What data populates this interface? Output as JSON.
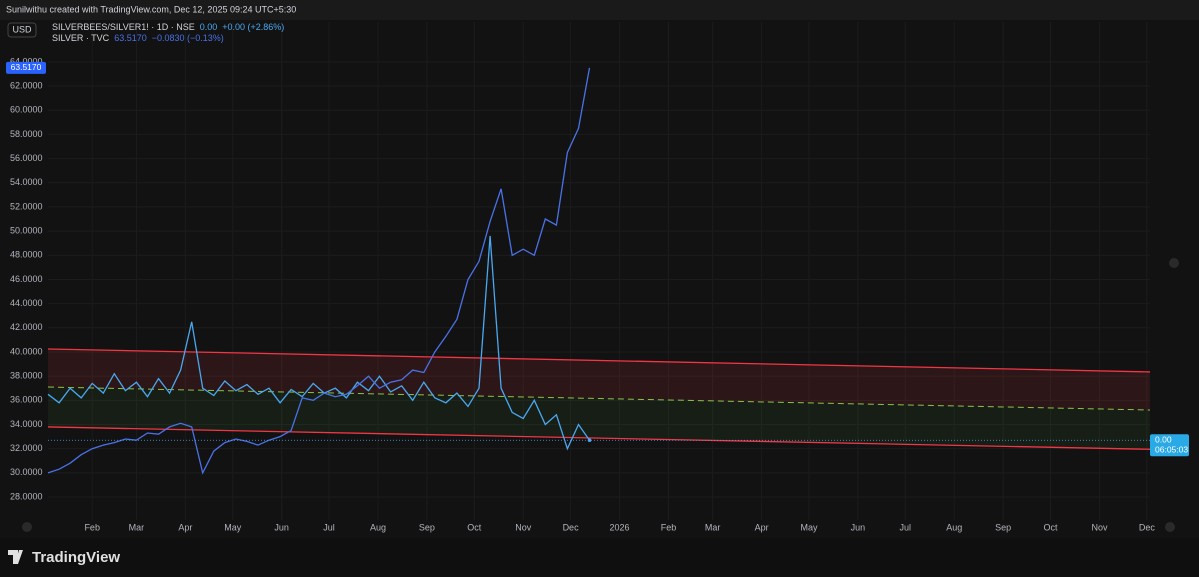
{
  "header": "Sunilwithu created with TradingView.com, Dec 12, 2025 09:24 UTC+5:30",
  "currency_button": "USD",
  "logo": "TradingView",
  "chart_data": {
    "type": "line",
    "legend": [
      {
        "name": "SILVERBEES/SILVER1! · 1D · NSE",
        "value": "0.00",
        "change": "+0.00 (+2.86%)"
      },
      {
        "name": "SILVER · TVC",
        "value": "63.5170",
        "change": "−0.0830 (−0.13%)"
      }
    ],
    "price_tag": "63.5170",
    "ratio_tag": {
      "value": "0.00",
      "countdown": "06:05:03"
    },
    "x": [
      3,
      10,
      17,
      24,
      31,
      38,
      45,
      52,
      59,
      66,
      73,
      80,
      87,
      94,
      101,
      108,
      115,
      122,
      129,
      136,
      143,
      150,
      157,
      164,
      171,
      178,
      185,
      192,
      199,
      206,
      213,
      220,
      227,
      234,
      241,
      248,
      255,
      262,
      269,
      276,
      283,
      290,
      297,
      304,
      311,
      318,
      325,
      332,
      339,
      346
    ],
    "series": [
      {
        "name": "SILVER",
        "color": "#4a72e8",
        "values": [
          30.0,
          30.3,
          30.8,
          31.5,
          32.0,
          32.3,
          32.5,
          32.8,
          32.7,
          33.3,
          33.2,
          33.8,
          34.1,
          33.8,
          30.0,
          31.8,
          32.5,
          32.8,
          32.6,
          32.3,
          32.7,
          33.0,
          33.5,
          36.2,
          36.0,
          36.6,
          36.3,
          36.5,
          37.2,
          38.0,
          37.0,
          37.5,
          37.7,
          38.5,
          38.3,
          40.0,
          41.3,
          42.7,
          46.0,
          47.5,
          50.8,
          53.5,
          48.0,
          48.5,
          48.0,
          51.0,
          50.5,
          56.5,
          58.5,
          63.5
        ]
      },
      {
        "name": "SILVERBEES/SILVER1!",
        "color": "#4aa8f0",
        "values": [
          36.5,
          35.8,
          37.0,
          36.2,
          37.4,
          36.6,
          38.2,
          36.8,
          37.5,
          36.3,
          37.8,
          36.6,
          38.5,
          42.5,
          37.0,
          36.4,
          37.6,
          36.8,
          37.3,
          36.5,
          37.0,
          35.8,
          36.9,
          36.3,
          37.4,
          36.6,
          37.0,
          36.2,
          37.5,
          36.8,
          38.0,
          36.7,
          37.2,
          36.0,
          37.5,
          36.2,
          35.8,
          36.6,
          35.5,
          37.0,
          49.6,
          37.0,
          35.0,
          34.5,
          36.0,
          34.0,
          34.8,
          32.0,
          34.0,
          32.7
        ]
      }
    ],
    "channel": {
      "x": [
        3,
        701
      ],
      "upper": [
        40.25,
        38.35
      ],
      "middle": [
        37.1,
        35.2
      ],
      "lower": [
        33.8,
        31.95
      ]
    },
    "xlim": [
      3,
      701
    ],
    "xticks": [
      {
        "value": 31,
        "label": "Feb"
      },
      {
        "value": 59,
        "label": "Mar"
      },
      {
        "value": 90,
        "label": "Apr"
      },
      {
        "value": 120,
        "label": "May"
      },
      {
        "value": 151,
        "label": "Jun"
      },
      {
        "value": 181,
        "label": "Jul"
      },
      {
        "value": 212,
        "label": "Aug"
      },
      {
        "value": 243,
        "label": "Sep"
      },
      {
        "value": 273,
        "label": "Oct"
      },
      {
        "value": 304,
        "label": "Nov"
      },
      {
        "value": 334,
        "label": "Dec"
      },
      {
        "value": 365,
        "label": "2026"
      },
      {
        "value": 396,
        "label": "Feb"
      },
      {
        "value": 424,
        "label": "Mar"
      },
      {
        "value": 455,
        "label": "Apr"
      },
      {
        "value": 485,
        "label": "May"
      },
      {
        "value": 516,
        "label": "Jun"
      },
      {
        "value": 546,
        "label": "Jul"
      },
      {
        "value": 577,
        "label": "Aug"
      },
      {
        "value": 608,
        "label": "Sep"
      },
      {
        "value": 638,
        "label": "Oct"
      },
      {
        "value": 669,
        "label": "Nov"
      },
      {
        "value": 699,
        "label": "Dec"
      }
    ],
    "ylim": [
      26.1,
      67.3
    ],
    "yticks": [
      {
        "value": 28,
        "label": "28.0000"
      },
      {
        "value": 30,
        "label": "30.0000"
      },
      {
        "value": 32,
        "label": "32.0000"
      },
      {
        "value": 34,
        "label": "34.0000"
      },
      {
        "value": 36,
        "label": "36.0000"
      },
      {
        "value": 38,
        "label": "38.0000"
      },
      {
        "value": 40,
        "label": "40.0000"
      },
      {
        "value": 42,
        "label": "42.0000"
      },
      {
        "value": 44,
        "label": "44.0000"
      },
      {
        "value": 46,
        "label": "46.0000"
      },
      {
        "value": 48,
        "label": "48.0000"
      },
      {
        "value": 50,
        "label": "50.0000"
      },
      {
        "value": 52,
        "label": "52.0000"
      },
      {
        "value": 54,
        "label": "54.0000"
      },
      {
        "value": 56,
        "label": "56.0000"
      },
      {
        "value": 58,
        "label": "58.0000"
      },
      {
        "value": 60,
        "label": "60.0000"
      },
      {
        "value": 62,
        "label": "62.0000"
      },
      {
        "value": 64,
        "label": "64.0000"
      }
    ],
    "grid": true
  }
}
